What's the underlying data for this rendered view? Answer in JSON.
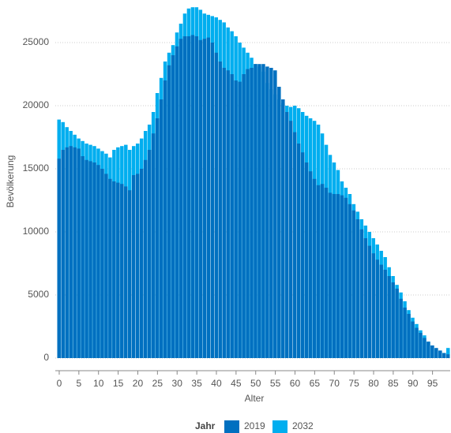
{
  "chart_data": {
    "type": "bar",
    "overlap": true,
    "xlabel": "Alter",
    "ylabel": "Bevölkerung",
    "legend_title": "Jahr",
    "x": [
      0,
      1,
      2,
      3,
      4,
      5,
      6,
      7,
      8,
      9,
      10,
      11,
      12,
      13,
      14,
      15,
      16,
      17,
      18,
      19,
      20,
      21,
      22,
      23,
      24,
      25,
      26,
      27,
      28,
      29,
      30,
      31,
      32,
      33,
      34,
      35,
      36,
      37,
      38,
      39,
      40,
      41,
      42,
      43,
      44,
      45,
      46,
      47,
      48,
      49,
      50,
      51,
      52,
      53,
      54,
      55,
      56,
      57,
      58,
      59,
      60,
      61,
      62,
      63,
      64,
      65,
      66,
      67,
      68,
      69,
      70,
      71,
      72,
      73,
      74,
      75,
      76,
      77,
      78,
      79,
      80,
      81,
      82,
      83,
      84,
      85,
      86,
      87,
      88,
      89,
      90,
      91,
      92,
      93,
      94,
      95,
      96,
      97,
      98,
      99
    ],
    "series": [
      {
        "name": "2019",
        "color": "#0070c0",
        "values": [
          15800,
          16500,
          16700,
          16800,
          16700,
          16600,
          16000,
          15700,
          15600,
          15500,
          15300,
          15000,
          14600,
          14200,
          14000,
          13900,
          13800,
          13600,
          13300,
          14500,
          14600,
          15000,
          15700,
          16500,
          17800,
          19000,
          20500,
          22000,
          23200,
          24000,
          24700,
          25300,
          25500,
          25500,
          25600,
          25500,
          25200,
          25300,
          25400,
          25000,
          24200,
          23500,
          23000,
          22800,
          22500,
          22000,
          21900,
          22500,
          22900,
          23000,
          23300,
          23300,
          23300,
          23100,
          23000,
          22800,
          21500,
          20500,
          19500,
          18800,
          17900,
          17000,
          16300,
          15500,
          14800,
          14200,
          13700,
          13800,
          13500,
          13100,
          13000,
          13000,
          12900,
          12700,
          12200,
          11700,
          11000,
          10200,
          9500,
          8900,
          8300,
          7800,
          7400,
          7000,
          6500,
          6000,
          5500,
          4700,
          4000,
          3500,
          2900,
          2400,
          2000,
          1600,
          1300,
          1000,
          800,
          600,
          400,
          300
        ]
      },
      {
        "name": "2032",
        "color": "#00aeef",
        "values": [
          18900,
          18700,
          18300,
          18000,
          17700,
          17400,
          17200,
          17000,
          16900,
          16800,
          16600,
          16400,
          16200,
          15900,
          16500,
          16700,
          16800,
          16900,
          16500,
          16800,
          17000,
          17400,
          18000,
          18500,
          19500,
          21000,
          22200,
          23500,
          24200,
          24800,
          25800,
          26500,
          27300,
          27700,
          27800,
          27800,
          27600,
          27300,
          27200,
          27100,
          27000,
          26800,
          26600,
          26200,
          25900,
          25500,
          25000,
          24600,
          24200,
          23800,
          23300,
          23100,
          22700,
          21800,
          21300,
          20900,
          20500,
          20200,
          20000,
          19900,
          20000,
          19800,
          19500,
          19200,
          19000,
          18800,
          18500,
          17800,
          16900,
          16100,
          15500,
          14900,
          14000,
          13500,
          13000,
          12200,
          11600,
          11000,
          10500,
          10000,
          9500,
          9000,
          8500,
          8000,
          7200,
          6500,
          5800,
          5200,
          4500,
          3800,
          3200,
          2700,
          2200,
          1800,
          1300,
          1000,
          700,
          500,
          400,
          800
        ]
      }
    ],
    "xlim": [
      -1,
      99.5
    ],
    "xticks": [
      0,
      5,
      10,
      15,
      20,
      25,
      30,
      35,
      40,
      45,
      50,
      55,
      60,
      65,
      70,
      75,
      80,
      85,
      90,
      95
    ],
    "ylim": [
      0,
      28000
    ],
    "yticks": [
      0,
      5000,
      10000,
      15000,
      20000,
      25000
    ],
    "grid": true
  }
}
